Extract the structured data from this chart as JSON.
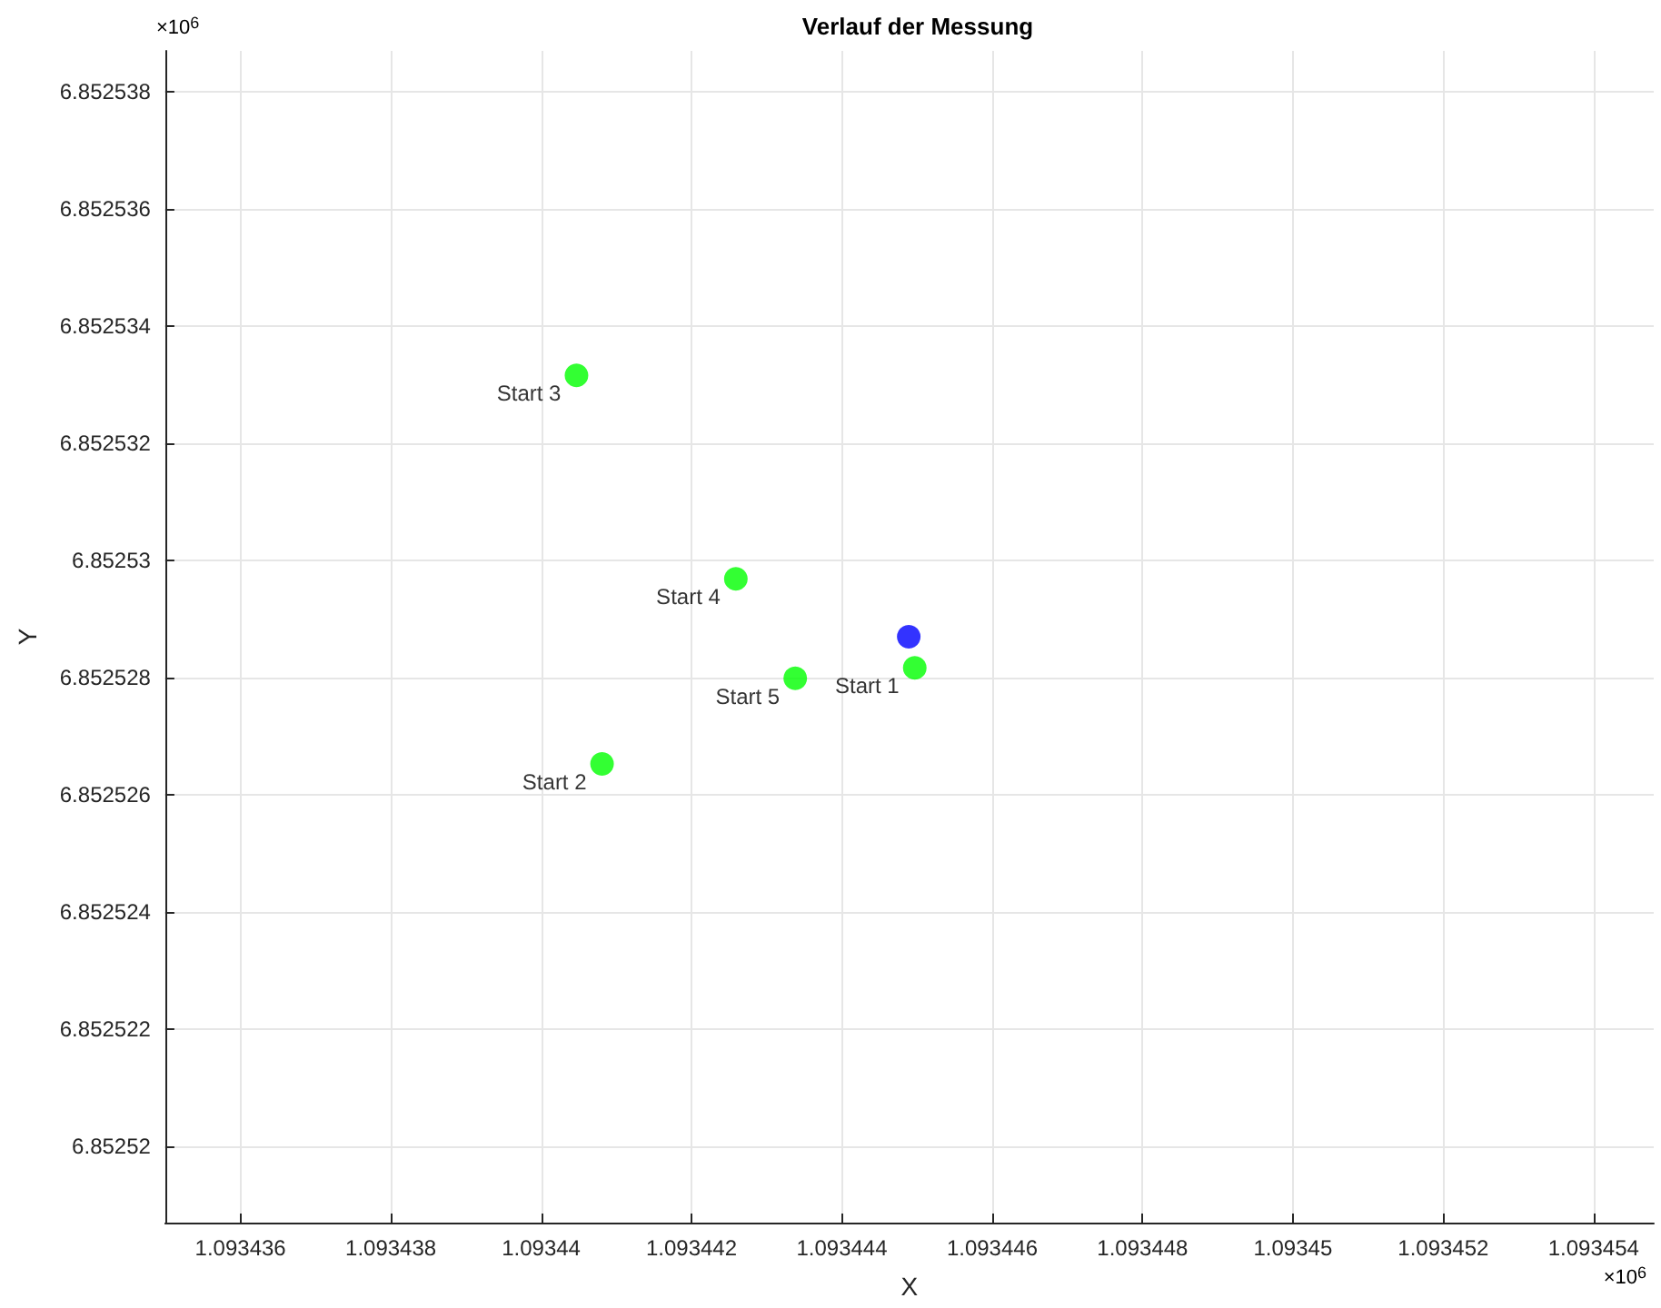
{
  "chart_data": {
    "type": "scatter",
    "title": "Verlauf der Messung",
    "xlabel": "X",
    "ylabel": "Y",
    "annotations": [
      "×10$^{6}$",
      "×10$^{6}$"
    ],
    "series": [
      {
        "color": "#00ff00",
        "x": [
          1.09344497,
          1.09344081,
          1.09344047,
          1.09344259,
          1.09344338
        ],
        "values": [
          6.85252817,
          6.85252653,
          6.85253316,
          6.85252969,
          6.85252799
        ],
        "value_labels": [
          "Start 1",
          "Start 2",
          "Start 3",
          "Start 4",
          "Start 5"
        ]
      },
      {
        "color": "#0000ff",
        "x": [
          1.09344489
        ],
        "values": [
          6.8525287
        ]
      }
    ],
    "xlim": [
      1.093435,
      1.0934548
    ],
    "ylim": [
      6.8525187,
      6.8525387
    ],
    "xticks": [
      1.093436,
      1.093438,
      1.09344,
      1.093442,
      1.093444,
      1.093446,
      1.093448,
      1.09345,
      1.093452,
      1.093454
    ],
    "yticks": [
      6.85252,
      6.852522,
      6.852524,
      6.852526,
      6.852528,
      6.85253,
      6.852532,
      6.852534,
      6.852536,
      6.852538
    ],
    "grid": true,
    "marker": "circle"
  }
}
